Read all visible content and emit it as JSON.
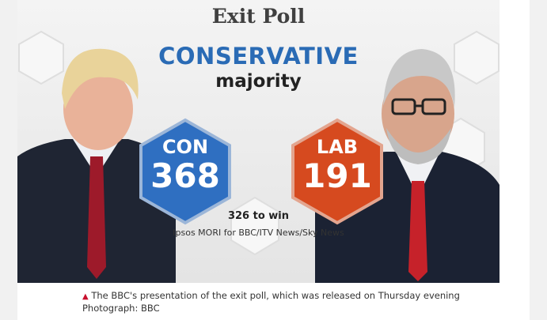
{
  "graphic": {
    "title": "Exit Poll",
    "headline": "CONSERVATIVE",
    "subheadline": "majority",
    "parties": [
      {
        "abbr": "CON",
        "seats": "368",
        "color": "#2f6fc1"
      },
      {
        "abbr": "LAB",
        "seats": "191",
        "color": "#d64a1f"
      }
    ],
    "to_win": "326 to win",
    "source": "Ipsos MORI for BBC/ITV News/Sky News"
  },
  "caption": {
    "text": "The BBC's presentation of the exit poll, which was released on Thursday evening",
    "credit": "Photograph: BBC",
    "marker_color": "#c8102e"
  }
}
